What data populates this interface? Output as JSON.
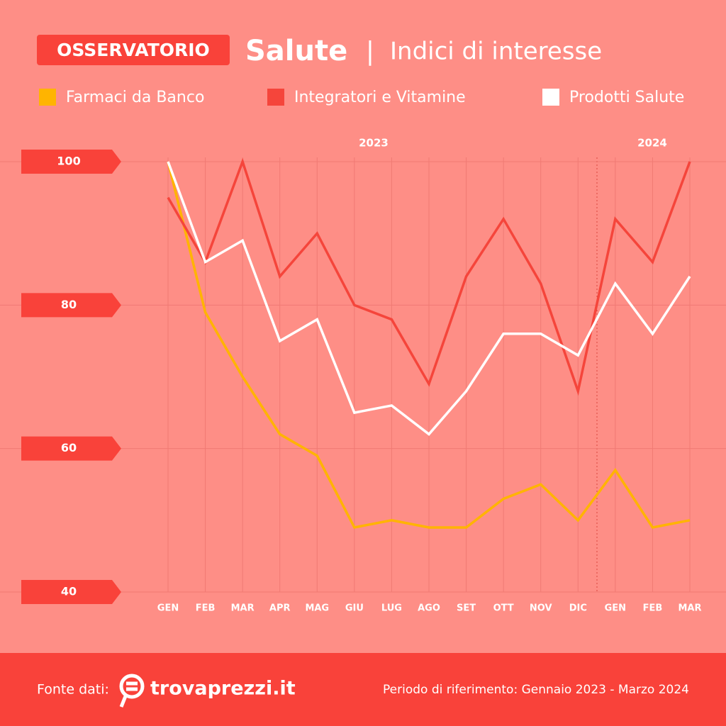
{
  "header": {
    "badge": "OSSERVATORIO",
    "title": "Salute",
    "separator": "|",
    "subtitle": "Indici di interesse"
  },
  "chart_data": {
    "type": "line",
    "categories": [
      "GEN",
      "FEB",
      "MAR",
      "APR",
      "MAG",
      "GIU",
      "LUG",
      "AGO",
      "SET",
      "OTT",
      "NOV",
      "DIC",
      "GEN",
      "FEB",
      "MAR"
    ],
    "annotations": [
      "2023",
      "2024"
    ],
    "series": [
      {
        "name": "Farmaci da Banco",
        "color": "#ffb400",
        "values": [
          100,
          79,
          70,
          62,
          59,
          49,
          50,
          49,
          49,
          53,
          55,
          50,
          57,
          49,
          50
        ]
      },
      {
        "name": "Integratori e Vitamine",
        "color": "#f5453b",
        "values": [
          95,
          86,
          100,
          84,
          90,
          80,
          78,
          69,
          84,
          92,
          83,
          68,
          92,
          86,
          100
        ]
      },
      {
        "name": "Prodotti Salute",
        "color": "#ffffff",
        "values": [
          100,
          86,
          89,
          75,
          78,
          65,
          66,
          62,
          68,
          76,
          76,
          73,
          83,
          76,
          84
        ]
      }
    ],
    "ylim": [
      40,
      100
    ],
    "yticks": [
      40,
      60,
      80,
      100
    ],
    "grid": true
  },
  "footer": {
    "source_label": "Fonte dati:",
    "logo": "trovaprezzi.it",
    "period": "Periodo di riferimento: Gennaio 2023 - Marzo 2024"
  }
}
